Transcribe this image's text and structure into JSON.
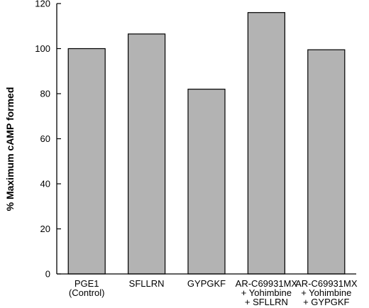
{
  "colors": {
    "bar_fill": "#b3b3b3",
    "bar_stroke": "#000000",
    "axis": "#000000",
    "background": "#ffffff"
  },
  "chart_data": {
    "type": "bar",
    "title": "",
    "xlabel": "",
    "ylabel": "% Maximum cAMP formed",
    "ylim": [
      0,
      120
    ],
    "yticks": [
      0,
      20,
      40,
      60,
      80,
      100,
      120
    ],
    "grid": false,
    "legend": "none",
    "categories": [
      [
        "PGE1",
        "(Control)"
      ],
      [
        "SFLLRN"
      ],
      [
        "GYPGKF"
      ],
      [
        "AR-C69931MX",
        "+ Yohimbine",
        "+ SFLLRN"
      ],
      [
        "AR-C69931MX",
        "+ Yohimbine",
        "+ GYPGKF"
      ]
    ],
    "values": [
      100,
      106.5,
      82,
      116,
      99.5
    ]
  }
}
